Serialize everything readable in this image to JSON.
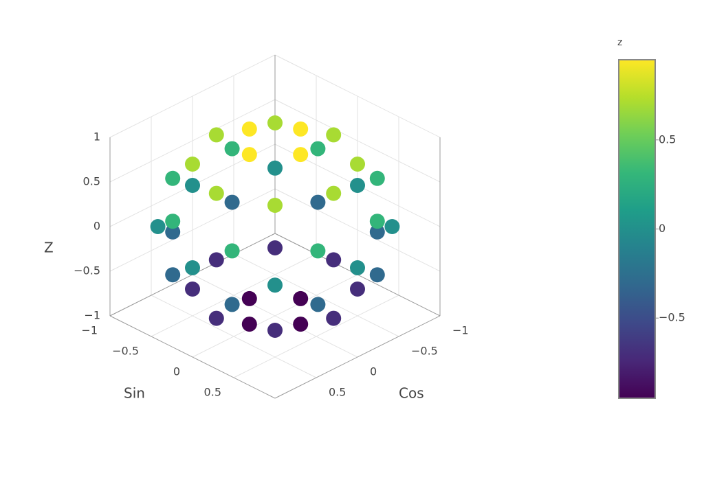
{
  "chart_data": {
    "type": "scatter3d",
    "x_title": "Cos",
    "y_title": "Sin",
    "z_title": "Z",
    "x": [
      0.31,
      0,
      -0.31,
      0,
      0.71,
      0.5,
      0,
      -0.5,
      -0.71,
      -0.5,
      0,
      0.5,
      0.88,
      0.36,
      -0.36,
      -0.88,
      -0.88,
      -0.36,
      0.36,
      0.88,
      1,
      0.71,
      0,
      -0.71,
      -1,
      -0.71,
      0,
      0.71,
      0.88,
      0.36,
      -0.36,
      -0.88,
      -0.88,
      -0.36,
      0.36,
      0.88,
      0.71,
      0.5,
      0,
      -0.5,
      -0.71,
      -0.5,
      0,
      0.5,
      0.31,
      0,
      -0.31,
      0
    ],
    "y": [
      0,
      0.31,
      0,
      -0.31,
      0,
      0.5,
      0.71,
      0.5,
      0,
      -0.5,
      -0.71,
      -0.5,
      0.36,
      0.88,
      0.88,
      0.36,
      -0.36,
      -0.88,
      -0.88,
      -0.36,
      0,
      0.71,
      1,
      0.71,
      0,
      -0.71,
      -1,
      -0.71,
      0.36,
      0.88,
      0.88,
      0.36,
      -0.36,
      -0.88,
      -0.88,
      -0.36,
      0,
      0.5,
      0.71,
      0.5,
      0,
      -0.5,
      -0.71,
      -0.5,
      0,
      0.31,
      0,
      -0.31
    ],
    "z": [
      0.95,
      0.95,
      0.95,
      0.95,
      0.7,
      0.7,
      0.7,
      0.7,
      0.7,
      0.7,
      0.7,
      0.7,
      0.3,
      0.3,
      0.3,
      0.3,
      0.3,
      0.3,
      0.3,
      0.3,
      0,
      0,
      0,
      0,
      0,
      0,
      0,
      0,
      -0.3,
      -0.3,
      -0.3,
      -0.3,
      -0.3,
      -0.3,
      -0.3,
      -0.3,
      -0.7,
      -0.7,
      -0.7,
      -0.7,
      -0.7,
      -0.7,
      -0.7,
      -0.7,
      -0.95,
      -0.95,
      -0.95,
      -0.95
    ],
    "xlim": [
      -1,
      1
    ],
    "ylim": [
      -1,
      1
    ],
    "zlim": [
      -1,
      1
    ],
    "xticks": [
      {
        "value": -1,
        "label": "−1"
      },
      {
        "value": -0.5,
        "label": "−0.5"
      },
      0,
      0.5
    ],
    "yticks": [
      {
        "value": -1,
        "label": "−1"
      },
      {
        "value": -0.5,
        "label": "−0.5"
      },
      0,
      0.5
    ],
    "zticks": [
      {
        "value": -1,
        "label": "−1"
      },
      {
        "value": -0.5,
        "label": "−0.5"
      },
      0,
      0.5,
      1
    ],
    "colorscale": [
      "#440154",
      "#482878",
      "#3e4989",
      "#31688e",
      "#26828e",
      "#1f9e89",
      "#35b779",
      "#6ece58",
      "#b5de2b",
      "#fde725"
    ],
    "colorbar": {
      "title": "z",
      "range": [
        -0.95,
        0.95
      ],
      "ticks": [
        {
          "value": -0.5,
          "label": "−0.5"
        },
        0,
        0.5
      ]
    }
  }
}
